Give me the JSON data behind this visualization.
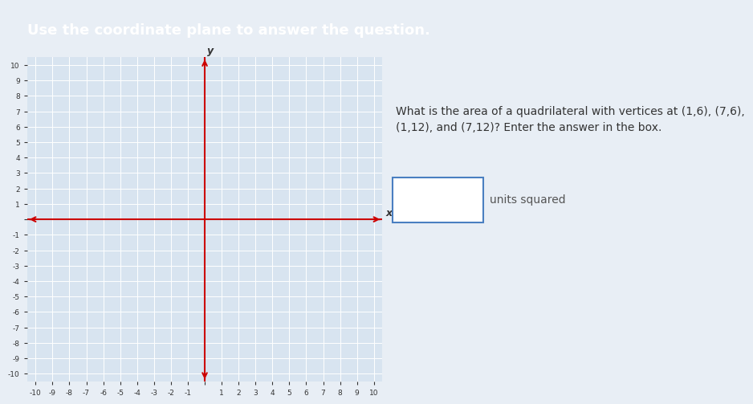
{
  "title": "Use the coordinate plane to answer the question.",
  "title_bg": "#4a7fc1",
  "title_color": "white",
  "title_fontsize": 13,
  "question_text": "What is the area of a quadrilateral with vertices at (1,6), (7,6),\n(1,12), and (7,12)? Enter the answer in the box.",
  "answer_label": "units squared",
  "grid_bg": "#d8e4f0",
  "axis_color": "#cc0000",
  "grid_color": "white",
  "tick_color": "#333333",
  "xlim": [
    -10.5,
    10.5
  ],
  "ylim": [
    -10.5,
    10.5
  ],
  "xticks": [
    -10,
    -9,
    -8,
    -7,
    -6,
    -5,
    -4,
    -3,
    -2,
    -1,
    1,
    2,
    3,
    4,
    5,
    6,
    7,
    8,
    9,
    10
  ],
  "yticks": [
    -10,
    -9,
    -8,
    -7,
    -6,
    -5,
    -4,
    -3,
    -2,
    -1,
    1,
    2,
    3,
    4,
    5,
    6,
    7,
    8,
    9,
    10
  ],
  "xlabel": "x",
  "ylabel": "y",
  "panel_bg": "#e8eef5",
  "right_bg": "#f0f4f8"
}
